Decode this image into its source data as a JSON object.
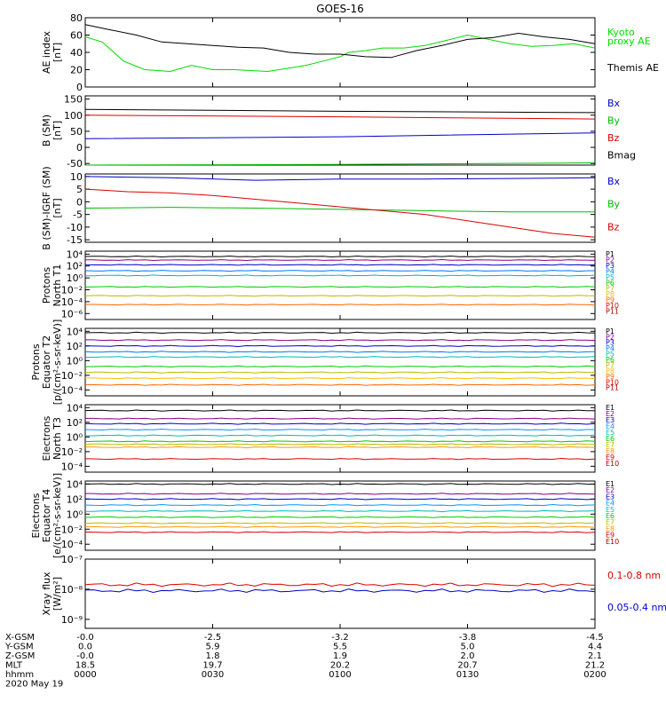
{
  "title": "GOES-16",
  "panels": [
    {
      "id": "ae",
      "ylabel": [
        "AE index",
        "[nT]"
      ],
      "ticks": [
        "80",
        "60",
        "40",
        "20",
        "0"
      ],
      "tick_values": [
        80,
        60,
        40,
        20,
        0
      ],
      "ylim": [
        0,
        80
      ],
      "scale": "linear",
      "legend": [
        {
          "text": "Kyoto",
          "color": "#00dd00"
        },
        {
          "text": "proxy AE",
          "color": "#00dd00"
        },
        {
          "text": "Themis AE",
          "color": "#000000"
        }
      ]
    },
    {
      "id": "b",
      "ylabel": [
        "B (SM)",
        "[nT]"
      ],
      "ticks": [
        "150",
        "100",
        "50",
        "0",
        "-50"
      ],
      "tick_values": [
        150,
        100,
        50,
        0,
        -50
      ],
      "ylim": [
        -55,
        160
      ],
      "scale": "linear",
      "legend": [
        {
          "text": "Bx",
          "color": "#0000cc"
        },
        {
          "text": "By",
          "color": "#00bb00"
        },
        {
          "text": "Bz",
          "color": "#dd0000"
        },
        {
          "text": "Bmag",
          "color": "#000000"
        }
      ]
    },
    {
      "id": "bigrf",
      "ylabel": [
        "B (SM)-IGRF (SM)",
        "[nT]"
      ],
      "ticks": [
        "10",
        "5",
        "0",
        "-5",
        "-10",
        "-15"
      ],
      "tick_values": [
        10,
        5,
        0,
        -5,
        -10,
        -15
      ],
      "ylim": [
        -16,
        11
      ],
      "scale": "linear",
      "legend": [
        {
          "text": "Bx",
          "color": "#0000cc"
        },
        {
          "text": "By",
          "color": "#00bb00"
        },
        {
          "text": "Bz",
          "color": "#dd0000"
        }
      ]
    },
    {
      "id": "pn",
      "ylabel": [
        "Protons",
        "North T1"
      ],
      "ticks": [
        "10⁴",
        "10²",
        "10⁰",
        "10⁻²",
        "10⁻⁴",
        "10⁻⁶"
      ],
      "tick_values": [
        4,
        2,
        0,
        -2,
        -4,
        -6
      ],
      "ylim": [
        -7,
        4.5
      ],
      "scale": "log",
      "legend": [
        {
          "text": "P1",
          "color": "#000000"
        },
        {
          "text": "P2",
          "color": "#880088"
        },
        {
          "text": "P3",
          "color": "#0000cc"
        },
        {
          "text": "P4",
          "color": "#0077ff"
        },
        {
          "text": "P5",
          "color": "#00bbbb"
        },
        {
          "text": "P6",
          "color": "#00cc00"
        },
        {
          "text": "P7",
          "color": "#bbbb00"
        },
        {
          "text": "P8",
          "color": "#ffbb00"
        },
        {
          "text": "P9",
          "color": "#ff6600"
        },
        {
          "text": "P10",
          "color": "#dd0000"
        },
        {
          "text": "P11",
          "color": "#aa0000"
        }
      ]
    },
    {
      "id": "pe",
      "ylabel": [
        "Protons",
        "Equator T2",
        "[p/(cm²-s-sr-keV)]"
      ],
      "ticks": [
        "10⁴",
        "10²",
        "10⁰",
        "10⁻²",
        "10⁻⁴"
      ],
      "tick_values": [
        4,
        2,
        0,
        -2,
        -4
      ],
      "ylim": [
        -4.8,
        4.4
      ],
      "scale": "log",
      "legend": [
        {
          "text": "P1",
          "color": "#000000"
        },
        {
          "text": "P2",
          "color": "#880088"
        },
        {
          "text": "P3",
          "color": "#0000cc"
        },
        {
          "text": "P4",
          "color": "#0077ff"
        },
        {
          "text": "P5",
          "color": "#00bbbb"
        },
        {
          "text": "P6",
          "color": "#00cc00"
        },
        {
          "text": "P7",
          "color": "#bbbb00"
        },
        {
          "text": "P8",
          "color": "#ffbb00"
        },
        {
          "text": "P9",
          "color": "#ff6600"
        },
        {
          "text": "P10",
          "color": "#dd0000"
        },
        {
          "text": "P11",
          "color": "#aa0000"
        }
      ]
    },
    {
      "id": "en",
      "ylabel": [
        "Electrons",
        "North T3"
      ],
      "ticks": [
        "10⁴",
        "10²",
        "10⁰",
        "10⁻²",
        "10⁻⁴"
      ],
      "tick_values": [
        4,
        2,
        0,
        -2,
        -4
      ],
      "ylim": [
        -4.8,
        4.4
      ],
      "scale": "log",
      "legend": [
        {
          "text": "E1",
          "color": "#000000"
        },
        {
          "text": "E2",
          "color": "#880088"
        },
        {
          "text": "E3",
          "color": "#0000cc"
        },
        {
          "text": "E4",
          "color": "#0099ff"
        },
        {
          "text": "E5",
          "color": "#00bbbb"
        },
        {
          "text": "E6",
          "color": "#00cc00"
        },
        {
          "text": "E7",
          "color": "#bbbb00"
        },
        {
          "text": "E8",
          "color": "#ff9900"
        },
        {
          "text": "E9",
          "color": "#dd0000"
        },
        {
          "text": "E10",
          "color": "#aa0000"
        }
      ]
    },
    {
      "id": "ee",
      "ylabel": [
        "Electrons",
        "Equator T4",
        "[e/(cm²-s-sr-keV)]"
      ],
      "ticks": [
        "10⁴",
        "10²",
        "10⁰",
        "10⁻²",
        "10⁻⁴"
      ],
      "tick_values": [
        4,
        2,
        0,
        -2,
        -4
      ],
      "ylim": [
        -4.8,
        4.4
      ],
      "scale": "log",
      "legend": [
        {
          "text": "E1",
          "color": "#000000"
        },
        {
          "text": "E2",
          "color": "#880088"
        },
        {
          "text": "E3",
          "color": "#0000cc"
        },
        {
          "text": "E4",
          "color": "#0099ff"
        },
        {
          "text": "E5",
          "color": "#00bbbb"
        },
        {
          "text": "E6",
          "color": "#00cc00"
        },
        {
          "text": "E7",
          "color": "#bbbb00"
        },
        {
          "text": "E8",
          "color": "#ff9900"
        },
        {
          "text": "E9",
          "color": "#dd0000"
        },
        {
          "text": "E10",
          "color": "#aa0000"
        }
      ]
    },
    {
      "id": "xray",
      "ylabel": [
        "Xray flux",
        "[W/m²]"
      ],
      "ticks": [
        "10⁻⁷",
        "10⁻⁸",
        "10⁻⁹"
      ],
      "tick_values": [
        -7,
        -8,
        -9
      ],
      "ylim": [
        -9.3,
        -7
      ],
      "scale": "log",
      "legend": [
        {
          "text": "0.1-0.8 nm",
          "color": "#dd0000"
        },
        {
          "text": "0.05-0.4 nm",
          "color": "#0000cc"
        }
      ]
    }
  ],
  "xaxis": {
    "labels": [
      "X-GSM",
      "Y-GSM",
      "Z-GSM",
      "MLT",
      "hhmm",
      "2020 May 19"
    ],
    "columns": [
      [
        "-0.0",
        "0.0",
        "-0.0",
        "18.5",
        "0000"
      ],
      [
        "-2.5",
        "5.9",
        "1.8",
        "19.7",
        "0030"
      ],
      [
        "-3.2",
        "5.5",
        "1.9",
        "20.2",
        "0100"
      ],
      [
        "-3.8",
        "5.0",
        "2.0",
        "20.7",
        "0130"
      ],
      [
        "-4.5",
        "4.4",
        "2.1",
        "21.2",
        "0200"
      ]
    ]
  },
  "chart_data": {
    "type": "line",
    "title": "GOES-16",
    "x_hhmm": [
      "0000",
      "0030",
      "0100",
      "0130",
      "0200"
    ],
    "xlim_minutes": [
      0,
      120
    ],
    "panels": [
      {
        "id": "ae",
        "series": [
          {
            "name": "Kyoto proxy AE",
            "x": [
              0,
              4,
              9,
              14,
              20,
              25,
              30,
              35,
              43,
              52,
              56,
              60,
              62,
              66,
              70,
              75,
              80,
              86,
              90,
              95,
              100,
              105,
              110,
              115,
              120
            ],
            "y": [
              58,
              52,
              30,
              20,
              18,
              25,
              20,
              20,
              18,
              25,
              30,
              35,
              40,
              42,
              45,
              45,
              48,
              55,
              60,
              55,
              50,
              47,
              48,
              50,
              45
            ]
          },
          {
            "name": "Themis AE",
            "x": [
              0,
              6,
              12,
              18,
              24,
              30,
              36,
              42,
              48,
              54,
              60,
              66,
              72,
              78,
              84,
              90,
              96,
              102,
              108,
              114,
              120
            ],
            "y": [
              72,
              66,
              60,
              52,
              50,
              48,
              46,
              45,
              40,
              38,
              38,
              35,
              34,
              42,
              48,
              55,
              57,
              62,
              58,
              55,
              50
            ]
          }
        ]
      },
      {
        "id": "b",
        "series": [
          {
            "name": "Bx",
            "x": [
              0,
              60,
              120
            ],
            "y": [
              27,
              33,
              45
            ]
          },
          {
            "name": "By",
            "x": [
              0,
              60,
              120
            ],
            "y": [
              -55,
              -53,
              -48
            ]
          },
          {
            "name": "Bz",
            "x": [
              0,
              60,
              120
            ],
            "y": [
              100,
              95,
              88
            ]
          },
          {
            "name": "Bmag",
            "x": [
              0,
              60,
              120
            ],
            "y": [
              118,
              112,
              108
            ]
          }
        ]
      },
      {
        "id": "bigrf",
        "series": [
          {
            "name": "Bx",
            "x": [
              0,
              20,
              40,
              60,
              80,
              100,
              120
            ],
            "y": [
              10,
              9.5,
              8.5,
              9,
              9,
              9.2,
              9.5
            ]
          },
          {
            "name": "By",
            "x": [
              0,
              20,
              40,
              60,
              80,
              100,
              120
            ],
            "y": [
              -2.5,
              -2.2,
              -2.5,
              -3,
              -3.5,
              -4,
              -4
            ]
          },
          {
            "name": "Bz",
            "x": [
              0,
              10,
              20,
              30,
              40,
              50,
              60,
              70,
              80,
              90,
              100,
              110,
              120
            ],
            "y": [
              5,
              4,
              3.5,
              2.5,
              1,
              -0.5,
              -2,
              -3.5,
              -5,
              -7.5,
              -10,
              -12.5,
              -14
            ]
          }
        ]
      },
      {
        "id": "pn",
        "series": [
          {
            "name": "P1",
            "level": 3.6
          },
          {
            "name": "P2",
            "level": 3.0
          },
          {
            "name": "P3",
            "level": 2.2
          },
          {
            "name": "P4",
            "level": 1.2
          },
          {
            "name": "P5",
            "level": 0.4
          },
          {
            "name": "P6",
            "level": -1.5
          },
          {
            "name": "P7",
            "level": -3.0
          },
          {
            "name": "P9",
            "level": -4.5
          }
        ]
      },
      {
        "id": "pe",
        "series": [
          {
            "name": "P1",
            "level": 3.8
          },
          {
            "name": "P2",
            "level": 2.8
          },
          {
            "name": "P3",
            "level": 2.0
          },
          {
            "name": "P4",
            "level": 1.2
          },
          {
            "name": "P5",
            "level": 0.5
          },
          {
            "name": "P6",
            "level": -0.8
          },
          {
            "name": "P7",
            "level": -1.6
          },
          {
            "name": "P8",
            "level": -2.4
          },
          {
            "name": "P9",
            "level": -3.3
          }
        ]
      },
      {
        "id": "en",
        "series": [
          {
            "name": "E1",
            "level": 3.6
          },
          {
            "name": "E2",
            "level": 2.5
          },
          {
            "name": "E3",
            "level": 1.8
          },
          {
            "name": "E4",
            "level": 1.0
          },
          {
            "name": "E5",
            "level": 0.2
          },
          {
            "name": "E6",
            "level": -0.6
          },
          {
            "name": "E7",
            "level": -1.0
          },
          {
            "name": "E8",
            "level": -1.4
          },
          {
            "name": "E9",
            "level": -3.0
          }
        ]
      },
      {
        "id": "ee",
        "series": [
          {
            "name": "E1",
            "level": 4.0
          },
          {
            "name": "E2",
            "level": 2.7
          },
          {
            "name": "E3",
            "level": 2.0
          },
          {
            "name": "E4",
            "level": 1.2
          },
          {
            "name": "E5",
            "level": 0.4
          },
          {
            "name": "E6",
            "level": -0.4
          },
          {
            "name": "E7",
            "level": -1.2
          },
          {
            "name": "E8",
            "level": -1.7
          },
          {
            "name": "E9",
            "level": -2.4
          }
        ]
      },
      {
        "id": "xray",
        "series": [
          {
            "name": "0.1-0.8 nm",
            "level": -7.85
          },
          {
            "name": "0.05-0.4 nm",
            "level": -8.05
          }
        ]
      }
    ]
  }
}
